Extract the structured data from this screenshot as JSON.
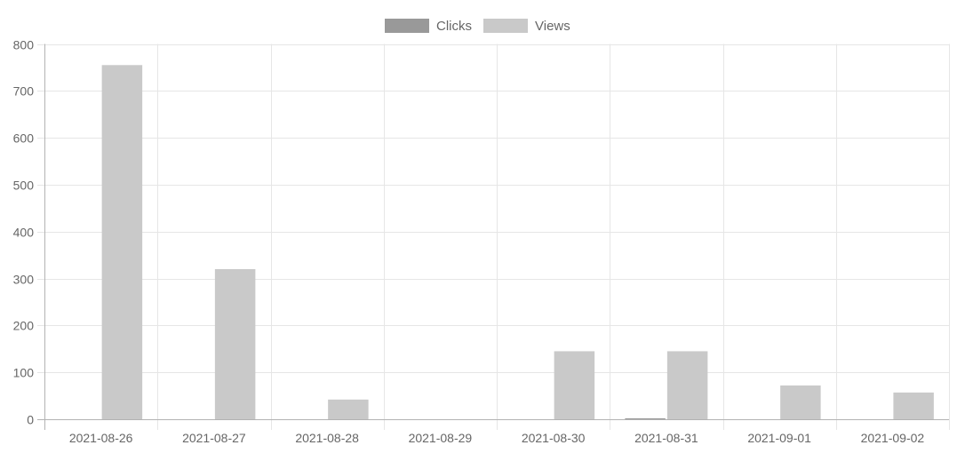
{
  "chart_data": {
    "type": "bar",
    "categories": [
      "2021-08-26",
      "2021-08-27",
      "2021-08-28",
      "2021-08-29",
      "2021-08-30",
      "2021-08-31",
      "2021-09-01",
      "2021-09-02"
    ],
    "series": [
      {
        "name": "Clicks",
        "color": "#999999",
        "values": [
          0,
          0,
          0,
          0,
          0,
          2,
          0,
          0
        ]
      },
      {
        "name": "Views",
        "color": "#c9c9c9",
        "values": [
          755,
          320,
          42,
          0,
          145,
          145,
          72,
          57
        ]
      }
    ],
    "ylim": [
      0,
      800
    ],
    "yticks": [
      0,
      100,
      200,
      300,
      400,
      500,
      600,
      700,
      800
    ],
    "grid": true,
    "legend_position": "top-center"
  }
}
